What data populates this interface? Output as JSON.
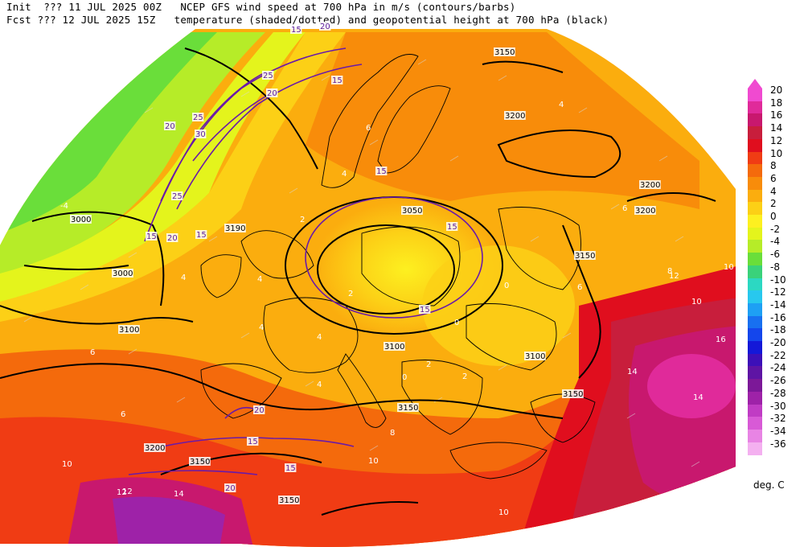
{
  "header": {
    "line1": "Init  ??? 11 JUL 2025 00Z   NCEP GFS wind speed at 700 hPa in m/s (contours/barbs)",
    "line2": "Fcst ??? 12 JUL 2025 15Z   temperature (shaded/dotted) and geopotential height at 700 hPa (black)"
  },
  "colorbar": {
    "units": "deg. C",
    "levels": [
      {
        "label": "20",
        "color": "#f04ad0"
      },
      {
        "label": "18",
        "color": "#e02a9a"
      },
      {
        "label": "16",
        "color": "#c8186e"
      },
      {
        "label": "14",
        "color": "#c81e3c"
      },
      {
        "label": "12",
        "color": "#e00e1e"
      },
      {
        "label": "10",
        "color": "#f03c14"
      },
      {
        "label": "8",
        "color": "#f46a0c"
      },
      {
        "label": "6",
        "color": "#f88c0a"
      },
      {
        "label": "4",
        "color": "#fbad0e"
      },
      {
        "label": "2",
        "color": "#fcd016"
      },
      {
        "label": "0",
        "color": "#fdf020"
      },
      {
        "label": "-2",
        "color": "#e4f41c"
      },
      {
        "label": "-4",
        "color": "#b6ec28"
      },
      {
        "label": "-6",
        "color": "#6ade3a"
      },
      {
        "label": "-8",
        "color": "#3ad27a"
      },
      {
        "label": "-10",
        "color": "#2cd8c2"
      },
      {
        "label": "-12",
        "color": "#28c8ee"
      },
      {
        "label": "-14",
        "color": "#1ea0f4"
      },
      {
        "label": "-16",
        "color": "#1870f0"
      },
      {
        "label": "-18",
        "color": "#1446ec"
      },
      {
        "label": "-20",
        "color": "#1418d8"
      },
      {
        "label": "-22",
        "color": "#3c10b8"
      },
      {
        "label": "-24",
        "color": "#5e14a4"
      },
      {
        "label": "-26",
        "color": "#7c1898"
      },
      {
        "label": "-28",
        "color": "#9e22a8"
      },
      {
        "label": "-30",
        "color": "#c03cc4"
      },
      {
        "label": "-32",
        "color": "#d85ad6"
      },
      {
        "label": "-34",
        "color": "#e884e4"
      },
      {
        "label": "-36",
        "color": "#f4b0f0"
      }
    ]
  },
  "map_labels": {
    "heights": [
      "3150",
      "3200",
      "3200",
      "3200",
      "3190",
      "3000",
      "3000",
      "3050",
      "3100",
      "3100",
      "3100",
      "3150",
      "3150",
      "3150",
      "3150",
      "3150",
      "3200"
    ],
    "winds": [
      "15",
      "20",
      "25",
      "20",
      "15",
      "20",
      "30",
      "25",
      "25",
      "20",
      "15",
      "15",
      "15",
      "15",
      "15",
      "20",
      "15",
      "15",
      "20"
    ],
    "temps": [
      "4",
      "6",
      "4",
      "2",
      "0",
      "4",
      "4",
      "2",
      "0",
      "0",
      "4",
      "6",
      "6",
      "8",
      "10",
      "10",
      "12",
      "14",
      "16",
      "14",
      "12",
      "10",
      "12",
      "14",
      "10",
      "-4",
      "2",
      "6",
      "8",
      "6",
      "4",
      "2",
      "4",
      "10"
    ]
  }
}
